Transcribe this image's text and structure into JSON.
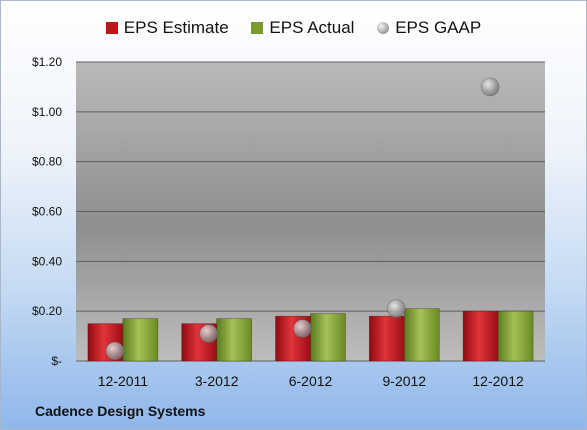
{
  "chart_data": {
    "type": "bar",
    "categories": [
      "12-2011",
      "3-2012",
      "6-2012",
      "9-2012",
      "12-2012"
    ],
    "series": [
      {
        "name": "EPS Estimate",
        "values": [
          0.15,
          0.15,
          0.18,
          0.18,
          0.2
        ],
        "color": "#c0141a"
      },
      {
        "name": "EPS Actual",
        "values": [
          0.17,
          0.17,
          0.19,
          0.21,
          0.2
        ],
        "color": "#7a9a2e"
      },
      {
        "name": "EPS GAAP",
        "type": "scatter",
        "values": [
          0.04,
          0.11,
          0.13,
          0.21,
          1.1
        ],
        "color": "#9a9a9a"
      }
    ],
    "yticks": [
      "$-",
      "$0.20",
      "$0.40",
      "$0.60",
      "$0.80",
      "$1.00",
      "$1.20"
    ],
    "ytick_values": [
      0,
      0.2,
      0.4,
      0.6,
      0.8,
      1.0,
      1.2
    ],
    "ylim": [
      0,
      1.2
    ],
    "grid": true,
    "legend": "top"
  },
  "footer": {
    "company": "Cadence Design Systems"
  }
}
